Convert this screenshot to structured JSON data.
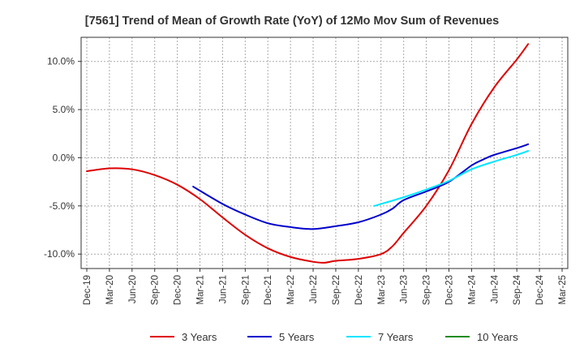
{
  "chart_data": {
    "type": "line",
    "title": "[7561]  Trend of Mean of Growth Rate (YoY) of 12Mo Mov Sum of Revenues",
    "xlabel": "",
    "ylabel": "",
    "ylim": [
      -11.5,
      12.5
    ],
    "yticks": [
      10,
      5,
      0,
      -5,
      -10
    ],
    "ytick_labels": [
      "10.0%",
      "5.0%",
      "0.0%",
      "-5.0%",
      "-10.0%"
    ],
    "x_tick_labels": [
      "Dec-19",
      "Mar-20",
      "Jun-20",
      "Sep-20",
      "Dec-20",
      "Mar-21",
      "Jun-21",
      "Sep-21",
      "Dec-21",
      "Mar-22",
      "Jun-22",
      "Sep-22",
      "Dec-22",
      "Mar-23",
      "Jun-23",
      "Sep-23",
      "Dec-23",
      "Mar-24",
      "Jun-24",
      "Sep-24",
      "Dec-24",
      "Mar-25"
    ],
    "grid": true,
    "legend_position": "bottom",
    "series": [
      {
        "name": "3 Years",
        "color": "#dd0000",
        "points": [
          [
            0,
            -1.4
          ],
          [
            1,
            -1.1
          ],
          [
            2,
            -1.2
          ],
          [
            3,
            -1.8
          ],
          [
            4,
            -2.8
          ],
          [
            5,
            -4.3
          ],
          [
            6,
            -6.2
          ],
          [
            7,
            -8.0
          ],
          [
            8,
            -9.4
          ],
          [
            9,
            -10.3
          ],
          [
            10,
            -10.8
          ],
          [
            10.5,
            -10.9
          ],
          [
            11,
            -10.7
          ],
          [
            12,
            -10.5
          ],
          [
            13,
            -10.0
          ],
          [
            13.5,
            -9.2
          ],
          [
            14,
            -7.8
          ],
          [
            15,
            -5.0
          ],
          [
            16,
            -1.3
          ],
          [
            17,
            3.5
          ],
          [
            18,
            7.3
          ],
          [
            19,
            10.2
          ],
          [
            19.5,
            11.8
          ]
        ]
      },
      {
        "name": "5 Years",
        "color": "#0000cc",
        "points": [
          [
            4.7,
            -3.0
          ],
          [
            6,
            -4.8
          ],
          [
            7,
            -5.9
          ],
          [
            8,
            -6.8
          ],
          [
            9,
            -7.2
          ],
          [
            10,
            -7.4
          ],
          [
            11,
            -7.1
          ],
          [
            12,
            -6.7
          ],
          [
            13,
            -5.9
          ],
          [
            13.5,
            -5.3
          ],
          [
            14,
            -4.4
          ],
          [
            15,
            -3.5
          ],
          [
            16,
            -2.5
          ],
          [
            17,
            -0.8
          ],
          [
            17.5,
            -0.2
          ],
          [
            18,
            0.3
          ],
          [
            19,
            1.0
          ],
          [
            19.5,
            1.4
          ]
        ]
      },
      {
        "name": "7 Years",
        "color": "#00e5ff",
        "points": [
          [
            12.7,
            -5.0
          ],
          [
            13,
            -4.8
          ],
          [
            14,
            -4.1
          ],
          [
            15,
            -3.3
          ],
          [
            16,
            -2.4
          ],
          [
            17,
            -1.2
          ],
          [
            18,
            -0.4
          ],
          [
            19,
            0.3
          ],
          [
            19.5,
            0.7
          ]
        ]
      },
      {
        "name": "10 Years",
        "color": "#228B22",
        "points": []
      }
    ]
  }
}
